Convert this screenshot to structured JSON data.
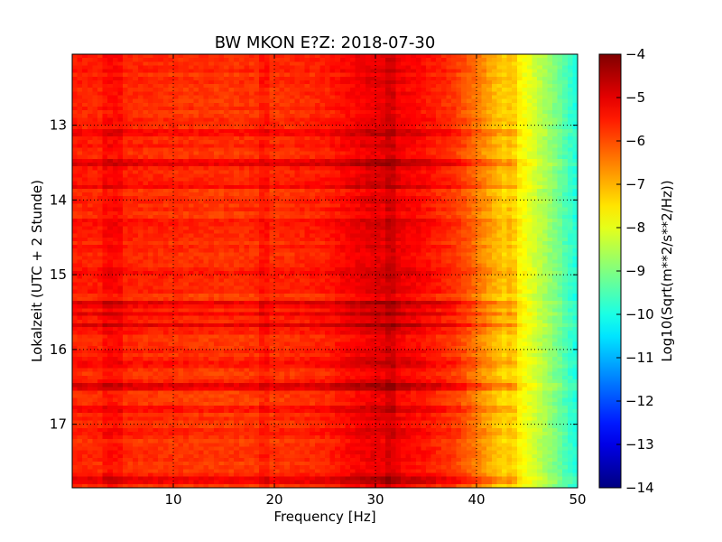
{
  "chart_data": {
    "type": "heatmap",
    "title": "BW MKON E?Z: 2018-07-30",
    "xlabel": "Frequency [Hz]",
    "ylabel": "Lokalzeit (UTC + 2 Stunde)",
    "colorbar_label": "Log10(Sqrt(m**2/s**2/Hz))",
    "xlim": [
      0,
      50
    ],
    "ylim": [
      17.85,
      12.05
    ],
    "x_ticks": [
      10,
      20,
      30,
      40,
      50
    ],
    "x_tick_labels": [
      "10",
      "20",
      "30",
      "40",
      "50"
    ],
    "y_ticks": [
      13,
      14,
      15,
      16,
      17
    ],
    "y_tick_labels": [
      "13",
      "14",
      "15",
      "16",
      "17"
    ],
    "color_range": [
      -14,
      -4
    ],
    "colorbar_ticks": [
      -4,
      -5,
      -6,
      -7,
      -8,
      -9,
      -10,
      -11,
      -12,
      -13,
      -14
    ],
    "colorbar_tick_labels": [
      "−4",
      "−5",
      "−6",
      "−7",
      "−8",
      "−9",
      "−10",
      "−11",
      "−12",
      "−13",
      "−14"
    ],
    "colormap": "jet",
    "grid": "dotted",
    "spectrum_profile": {
      "frequency_hz": [
        0,
        5,
        10,
        15,
        20,
        25,
        28,
        30,
        32,
        35,
        38,
        40,
        42,
        44,
        45,
        46,
        47,
        48,
        49,
        50
      ],
      "log10_amplitude": [
        -5.55,
        -5.6,
        -5.7,
        -5.75,
        -5.7,
        -5.55,
        -5.2,
        -5.0,
        -5.1,
        -5.4,
        -5.8,
        -6.4,
        -7.1,
        -7.6,
        -7.9,
        -8.3,
        -8.7,
        -9.1,
        -9.6,
        -10.0
      ]
    },
    "features": {
      "strong_horizontal_bands_hours": [
        13.5,
        15.4,
        15.52,
        15.68,
        16.5,
        17.75
      ],
      "moderate_horizontal_bands_hours": [
        13.1,
        13.8,
        14.3,
        14.95,
        16.2,
        16.8,
        17.1
      ],
      "vertical_lines_hz": [
        3.5,
        4.5,
        19.0,
        31.5,
        43.5
      ]
    }
  }
}
